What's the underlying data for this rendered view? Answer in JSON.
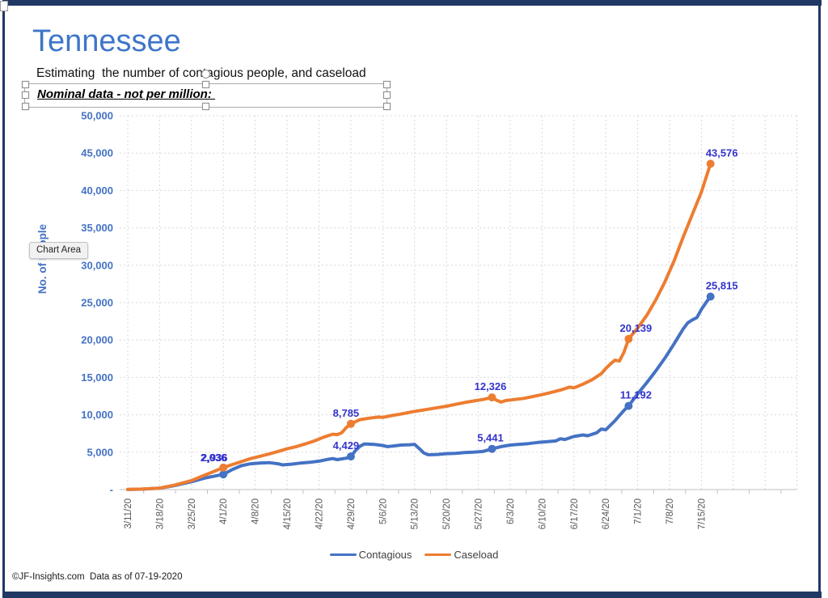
{
  "page": {
    "title": "Tennessee",
    "subtitle": "Estimating  the number of contagious people, and caseload",
    "note": "Nominal data - not per million: ",
    "tooltip": "Chart Area",
    "footer": "©JF-Insights.com  Data as of 07-19-2020",
    "frame_color": "#1F3864",
    "title_color": "#3E76C8"
  },
  "chart_data": {
    "type": "line",
    "ylabel": "No. of People",
    "ylim": [
      0,
      50000
    ],
    "ytick_step": 5000,
    "y_tick_labels": [
      "-",
      "5,000",
      "10,000",
      "15,000",
      "20,000",
      "25,000",
      "30,000",
      "35,000",
      "40,000",
      "45,000",
      "50,000"
    ],
    "x_tick_labels": [
      "3/11/20",
      "3/18/20",
      "3/25/20",
      "4/1/20",
      "4/8/20",
      "4/15/20",
      "4/22/20",
      "4/29/20",
      "5/6/20",
      "5/13/20",
      "5/20/20",
      "5/27/20",
      "6/3/20",
      "6/10/20",
      "6/17/20",
      "6/24/20",
      "7/1/20",
      "7/8/20",
      "7/15/20"
    ],
    "x_unit": "days since 3/11/20, one label per week",
    "grid": "dashed",
    "legend": [
      "Contagious",
      "Caseload"
    ],
    "legend_position": "bottom",
    "series": [
      {
        "name": "Contagious",
        "color": "#4472C4",
        "points": [
          [
            0,
            15
          ],
          [
            3,
            50
          ],
          [
            7,
            180
          ],
          [
            10,
            500
          ],
          [
            14,
            1050
          ],
          [
            17,
            1550
          ],
          [
            21,
            2036
          ],
          [
            23,
            2700
          ],
          [
            25,
            3200
          ],
          [
            27,
            3450
          ],
          [
            29,
            3550
          ],
          [
            31,
            3600
          ],
          [
            33,
            3450
          ],
          [
            34,
            3300
          ],
          [
            36,
            3400
          ],
          [
            38,
            3550
          ],
          [
            40,
            3650
          ],
          [
            42,
            3800
          ],
          [
            44,
            4050
          ],
          [
            45,
            4150
          ],
          [
            46,
            4000
          ],
          [
            48,
            4200
          ],
          [
            49,
            4429
          ],
          [
            50,
            5200
          ],
          [
            51,
            5800
          ],
          [
            52,
            6100
          ],
          [
            54,
            6050
          ],
          [
            56,
            5900
          ],
          [
            57,
            5750
          ],
          [
            58,
            5800
          ],
          [
            60,
            5950
          ],
          [
            62,
            6000
          ],
          [
            63,
            6050
          ],
          [
            64,
            5500
          ],
          [
            65,
            4900
          ],
          [
            66,
            4650
          ],
          [
            68,
            4700
          ],
          [
            70,
            4800
          ],
          [
            72,
            4850
          ],
          [
            74,
            4950
          ],
          [
            76,
            5000
          ],
          [
            78,
            5100
          ],
          [
            80,
            5441
          ],
          [
            82,
            5750
          ],
          [
            84,
            5950
          ],
          [
            86,
            6050
          ],
          [
            88,
            6150
          ],
          [
            90,
            6300
          ],
          [
            92,
            6400
          ],
          [
            94,
            6500
          ],
          [
            95,
            6800
          ],
          [
            96,
            6700
          ],
          [
            98,
            7100
          ],
          [
            100,
            7300
          ],
          [
            101,
            7200
          ],
          [
            103,
            7600
          ],
          [
            104,
            8100
          ],
          [
            105,
            8000
          ],
          [
            106,
            8600
          ],
          [
            107,
            9200
          ],
          [
            108,
            9900
          ],
          [
            109,
            10600
          ],
          [
            110,
            11192
          ],
          [
            112,
            12800
          ],
          [
            114,
            14300
          ],
          [
            116,
            15900
          ],
          [
            118,
            17600
          ],
          [
            120,
            19500
          ],
          [
            122,
            21500
          ],
          [
            123,
            22300
          ],
          [
            124,
            22700
          ],
          [
            125,
            23000
          ],
          [
            126,
            24100
          ],
          [
            127,
            25000
          ],
          [
            128,
            25815
          ]
        ],
        "labeled_points": [
          {
            "day": 21,
            "value": 2036,
            "label": "2,036",
            "dx": -12,
            "dy": -16
          },
          {
            "day": 49,
            "value": 4429,
            "label": "4,429",
            "dx": -6,
            "dy": -9
          },
          {
            "day": 80,
            "value": 5441,
            "label": "5,441",
            "dx": -2,
            "dy": -9
          },
          {
            "day": 110,
            "value": 11192,
            "label": "11,192",
            "dx": 9,
            "dy": -9
          },
          {
            "day": 128,
            "value": 25815,
            "label": "25,815",
            "dx": 14,
            "dy": -9
          }
        ]
      },
      {
        "name": "Caseload",
        "color": "#ED7D31",
        "points": [
          [
            0,
            20
          ],
          [
            3,
            60
          ],
          [
            7,
            200
          ],
          [
            10,
            550
          ],
          [
            14,
            1200
          ],
          [
            17,
            1950
          ],
          [
            21,
            2936
          ],
          [
            23,
            3350
          ],
          [
            25,
            3750
          ],
          [
            27,
            4150
          ],
          [
            29,
            4450
          ],
          [
            31,
            4750
          ],
          [
            33,
            5100
          ],
          [
            35,
            5450
          ],
          [
            37,
            5750
          ],
          [
            39,
            6100
          ],
          [
            41,
            6500
          ],
          [
            43,
            7000
          ],
          [
            45,
            7400
          ],
          [
            46,
            7350
          ],
          [
            47,
            7600
          ],
          [
            48,
            8300
          ],
          [
            49,
            8785
          ],
          [
            51,
            9350
          ],
          [
            53,
            9550
          ],
          [
            55,
            9700
          ],
          [
            56,
            9650
          ],
          [
            58,
            9900
          ],
          [
            60,
            10100
          ],
          [
            62,
            10350
          ],
          [
            64,
            10550
          ],
          [
            66,
            10750
          ],
          [
            68,
            10950
          ],
          [
            70,
            11150
          ],
          [
            72,
            11400
          ],
          [
            74,
            11650
          ],
          [
            76,
            11850
          ],
          [
            78,
            12050
          ],
          [
            80,
            12326
          ],
          [
            81,
            11950
          ],
          [
            82,
            11700
          ],
          [
            83,
            11900
          ],
          [
            85,
            12050
          ],
          [
            87,
            12200
          ],
          [
            89,
            12450
          ],
          [
            91,
            12700
          ],
          [
            93,
            13000
          ],
          [
            95,
            13300
          ],
          [
            96,
            13500
          ],
          [
            97,
            13700
          ],
          [
            98,
            13600
          ],
          [
            100,
            14100
          ],
          [
            102,
            14700
          ],
          [
            104,
            15500
          ],
          [
            105,
            16200
          ],
          [
            106,
            16800
          ],
          [
            107,
            17300
          ],
          [
            108,
            17200
          ],
          [
            109,
            18400
          ],
          [
            110,
            20139
          ],
          [
            112,
            21600
          ],
          [
            114,
            23300
          ],
          [
            116,
            25400
          ],
          [
            118,
            27800
          ],
          [
            120,
            30600
          ],
          [
            122,
            33800
          ],
          [
            124,
            36800
          ],
          [
            126,
            39800
          ],
          [
            127,
            41700
          ],
          [
            128,
            43576
          ]
        ],
        "labeled_points": [
          {
            "day": 21,
            "value": 2936,
            "label": "2,936",
            "dx": -11,
            "dy": -8
          },
          {
            "day": 49,
            "value": 8785,
            "label": "8,785",
            "dx": -6,
            "dy": -9
          },
          {
            "day": 80,
            "value": 12326,
            "label": "12,326",
            "dx": -2,
            "dy": -9
          },
          {
            "day": 110,
            "value": 20139,
            "label": "20,139",
            "dx": 9,
            "dy": -9
          },
          {
            "day": 128,
            "value": 43576,
            "label": "43,576",
            "dx": 14,
            "dy": -9
          }
        ]
      }
    ]
  }
}
